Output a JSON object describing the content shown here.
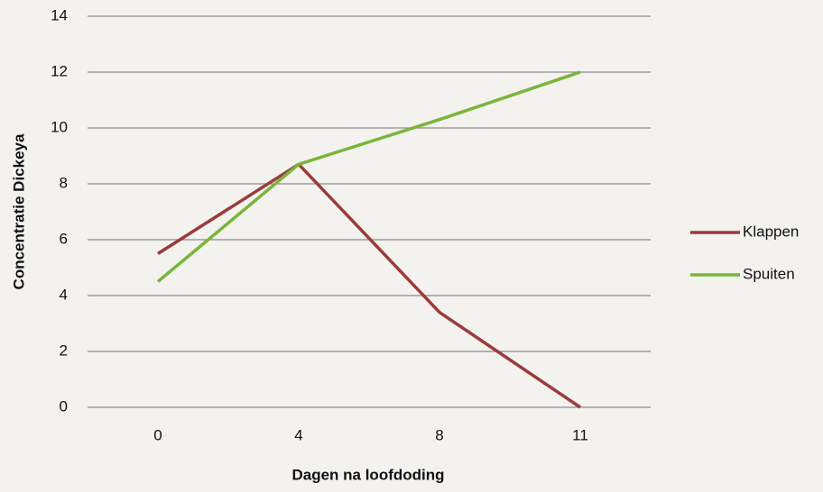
{
  "chart_data": {
    "type": "line",
    "xlabel": "Dagen na loofdoding",
    "ylabel": "Concentratie Dickeya",
    "categories": [
      "0",
      "4",
      "8",
      "11"
    ],
    "series": [
      {
        "name": "Klappen",
        "color": "#9b3b3b",
        "values": [
          5.5,
          8.7,
          3.4,
          0
        ]
      },
      {
        "name": "Spuiten",
        "color": "#7ab53a",
        "values": [
          4.5,
          8.7,
          10.3,
          12
        ]
      }
    ],
    "ylim": [
      0,
      14
    ],
    "yticks": [
      0,
      2,
      4,
      6,
      8,
      10,
      12,
      14
    ],
    "grid": true,
    "legend": "right"
  }
}
